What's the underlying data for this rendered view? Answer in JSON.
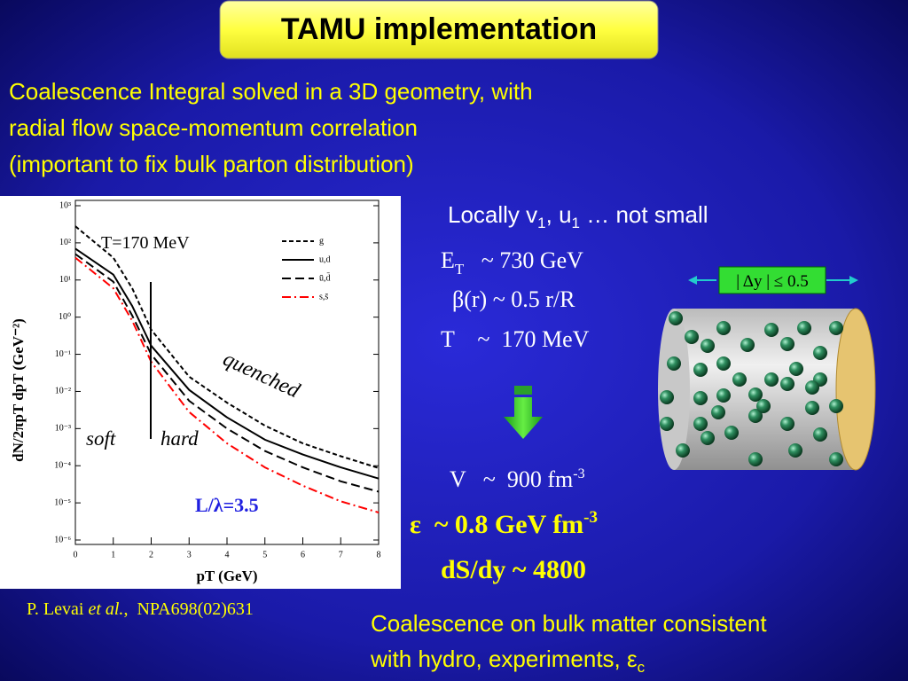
{
  "title": "TAMU implementation",
  "intro": [
    "Coalescence Integral solved in a 3D geometry, with",
    "radial flow space-momentum correlation",
    "(important to fix bulk parton distribution)"
  ],
  "citation": {
    "author": "P. Levai ",
    "etal": "et al.",
    "ref": ",  NPA698(02)631"
  },
  "locally": [
    "Locally v",
    "1",
    ", u",
    "1",
    " … not small"
  ],
  "params": {
    "et": [
      "E",
      "T",
      "   ~ 730 GeV"
    ],
    "beta": "β(r) ~ 0.5 r/R",
    "temp": "T    ~  170 MeV",
    "volume": [
      "V   ~  900 fm",
      "-3"
    ],
    "epsilon": [
      "ε  ~ 0.8 GeV fm",
      "-3"
    ],
    "entropy": "dS/dy ~ 4800"
  },
  "rapidity_box": "| Δy | ≤ 0.5",
  "conclusion": [
    "Coalescence on bulk matter consistent",
    "with hydro, experiments, ε",
    "c"
  ],
  "chart_data": {
    "type": "line",
    "x_label": "pT (GeV)",
    "y_label": "dN/2πpT dpT (GeV⁻²)",
    "x": [
      0,
      1,
      1.5,
      2,
      3,
      4,
      5,
      6,
      7,
      8
    ],
    "series": [
      {
        "name": "g",
        "color": "#000000",
        "dash": "short",
        "values": [
          280,
          40,
          6,
          0.46,
          0.025,
          0.005,
          0.0012,
          0.0004,
          0.00018,
          8.7e-05
        ]
      },
      {
        "name": "u,d",
        "color": "#000000",
        "dash": "solid",
        "values": [
          70,
          14,
          2,
          0.17,
          0.011,
          0.002,
          0.0005,
          0.0002,
          9e-05,
          4.5e-05
        ]
      },
      {
        "name": "ū,d̄",
        "color": "#000000",
        "dash": "long",
        "values": [
          50,
          9,
          1.1,
          0.1,
          0.0056,
          0.001,
          0.00025,
          9e-05,
          3.8e-05,
          2e-05
        ]
      },
      {
        "name": "s,s̄",
        "color": "#ff0000",
        "dash": "dashdot",
        "values": [
          40,
          6,
          0.8,
          0.063,
          0.0028,
          0.0004,
          9e-05,
          2.9e-05,
          1.1e-05,
          5.5e-06
        ]
      }
    ],
    "xlim": [
      0,
      8
    ],
    "xticks": [
      0,
      1,
      2,
      3,
      4,
      5,
      6,
      7,
      8
    ],
    "ylim": [
      1e-06,
      1000
    ],
    "log_y": true,
    "yticks": [
      {
        "value": 1000,
        "label": "10³"
      },
      {
        "value": 100,
        "label": "10²"
      },
      {
        "value": 10,
        "label": "10¹"
      },
      {
        "value": 1,
        "label": "10⁰"
      },
      {
        "value": 0.1,
        "label": "10⁻¹"
      },
      {
        "value": 0.01,
        "label": "10⁻²"
      },
      {
        "value": 0.001,
        "label": "10⁻³"
      },
      {
        "value": 0.0001,
        "label": "10⁻⁴"
      },
      {
        "value": 1e-05,
        "label": "10⁻⁵"
      },
      {
        "value": 1e-06,
        "label": "10⁻⁶"
      }
    ],
    "legend": "upper right",
    "annotations": [
      "T=170 MeV",
      "quenched",
      "soft",
      "hard",
      "L/λ=3.5"
    ]
  }
}
